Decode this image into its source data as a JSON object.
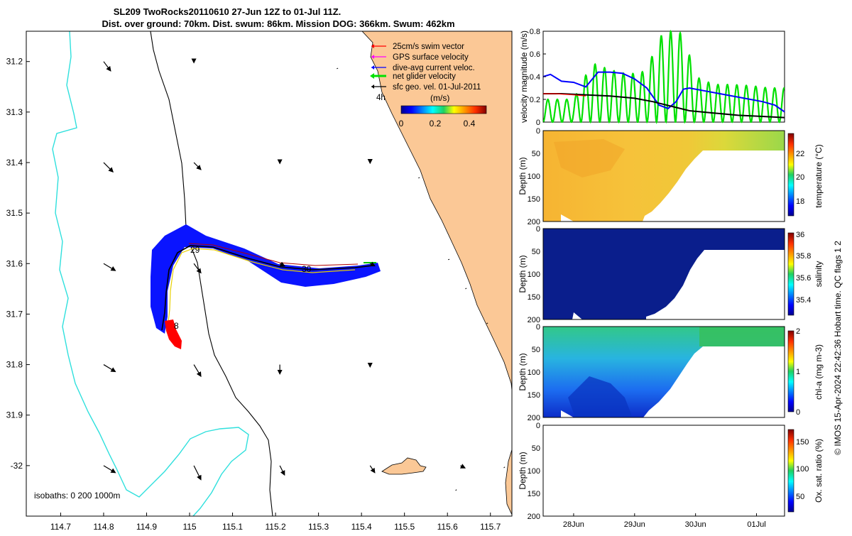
{
  "title": {
    "line1": "SL209 TwoRocks20110610 27-Jun 12Z to 01-Jul 11Z.",
    "line2": "Dist. over ground: 70km. Dist. swum: 86km. Mission DOG: 366km. Swum: 462km"
  },
  "credit": "© IMOS 15-Apr-2024 22:42:36 Hobart time. QC flags 1  2",
  "colors": {
    "land": "#fbc896",
    "isobath": "#2fe0dd",
    "coast": "#000000",
    "glider_band": "#0a14ff",
    "swim_vector": "#ff0000",
    "gps_velocity": "#ff00ff",
    "current_velocity": "#0000ff",
    "net_velocity": "#00e000",
    "geo_velocity": "#000000"
  },
  "chart_data": [
    {
      "type": "map",
      "name": "track-map",
      "xlim": [
        114.62,
        115.75
      ],
      "ylim": [
        -32.1,
        -31.14
      ],
      "xticks": [
        114.7,
        114.8,
        114.9,
        115,
        115.1,
        115.2,
        115.3,
        115.4,
        115.5,
        115.6,
        115.7
      ],
      "xtick_labels": [
        "114.7",
        "114.8",
        "114.9",
        "115",
        "115.1",
        "115.2",
        "115.3",
        "115.4",
        "115.5",
        "115.6",
        "115.7"
      ],
      "yticks": [
        -31.2,
        -31.3,
        -31.4,
        -31.5,
        -31.6,
        -31.7,
        -31.8,
        -31.9,
        -32.0
      ],
      "ytick_labels": [
        "31.2",
        "31.3",
        "31.4",
        "31.5",
        "31.6",
        "31.7",
        "31.8",
        "31.9",
        "-32"
      ],
      "legend": [
        {
          "label": "25cm/s swim vector",
          "color": "#ff0000"
        },
        {
          "label": "GPS surface velocity",
          "color": "#ff00ff"
        },
        {
          "label": "dive-avg current veloc.",
          "color": "#0000ff"
        },
        {
          "label": "net glider velocity",
          "color": "#00e000"
        },
        {
          "label": "sfc geo. vel. 01-Jul-2011",
          "color": "#000000"
        }
      ],
      "legend_extra": "4h",
      "colorbar": {
        "label": "(m/s)",
        "ticks": [
          0,
          0.2,
          0.4
        ],
        "tick_labels": [
          "0",
          "0.2",
          "0.4"
        ],
        "range": [
          0,
          0.5
        ]
      },
      "day_labels": [
        "29",
        "30",
        "8"
      ],
      "isobath_note": "isobaths: 0   200  1000m",
      "geo_vectors": [
        {
          "lon": 114.8,
          "lat": -31.2,
          "u": 0.03,
          "v": -0.04
        },
        {
          "lon": 115.01,
          "lat": -31.2,
          "u": 0.0,
          "v": -0.005
        },
        {
          "lon": 114.8,
          "lat": -31.4,
          "u": 0.04,
          "v": -0.04
        },
        {
          "lon": 115.01,
          "lat": -31.4,
          "u": 0.03,
          "v": -0.03
        },
        {
          "lon": 115.21,
          "lat": -31.4,
          "u": 0.0,
          "v": -0.004
        },
        {
          "lon": 115.42,
          "lat": -31.4,
          "u": 0.0,
          "v": -0.003
        },
        {
          "lon": 114.8,
          "lat": -31.6,
          "u": 0.05,
          "v": -0.03
        },
        {
          "lon": 115.01,
          "lat": -31.6,
          "u": 0.03,
          "v": -0.04
        },
        {
          "lon": 115.21,
          "lat": -31.6,
          "u": 0.02,
          "v": -0.01
        },
        {
          "lon": 115.42,
          "lat": -31.6,
          "u": 0.02,
          "v": -0.01
        },
        {
          "lon": 114.8,
          "lat": -31.8,
          "u": 0.05,
          "v": -0.03
        },
        {
          "lon": 115.01,
          "lat": -31.8,
          "u": 0.03,
          "v": -0.05
        },
        {
          "lon": 115.21,
          "lat": -31.8,
          "u": 0.0,
          "v": -0.04
        },
        {
          "lon": 115.42,
          "lat": -31.8,
          "u": 0.0,
          "v": -0.01
        },
        {
          "lon": 114.8,
          "lat": -32.0,
          "u": 0.05,
          "v": -0.03
        },
        {
          "lon": 115.01,
          "lat": -32.0,
          "u": 0.03,
          "v": -0.06
        },
        {
          "lon": 115.21,
          "lat": -32.0,
          "u": 0.02,
          "v": -0.04
        },
        {
          "lon": 115.42,
          "lat": -32.0,
          "u": 0.02,
          "v": -0.03
        },
        {
          "lon": 115.63,
          "lat": -32.0,
          "u": 0.02,
          "v": -0.01
        }
      ]
    },
    {
      "type": "line",
      "name": "velocity-magnitude",
      "ylabel": "velocity magnitude (m/s)",
      "ylim": [
        0,
        0.8
      ],
      "yticks": [
        0,
        0.2,
        0.4,
        0.6,
        0.8
      ],
      "ytick_labels": [
        "0",
        "0.2",
        "0.4",
        "0.6",
        "0.8"
      ],
      "xlim": [
        27.5,
        31.46
      ],
      "series": [
        {
          "name": "net glider velocity",
          "color": "#00e000",
          "x": [
            27.5,
            28.0,
            28.3,
            28.6,
            28.9,
            29.2,
            29.4,
            29.6,
            29.8,
            30.0,
            30.3,
            30.6,
            30.9,
            31.2,
            31.46
          ],
          "y": [
            0.2,
            0.2,
            0.52,
            0.46,
            0.42,
            0.45,
            0.75,
            0.8,
            0.78,
            0.4,
            0.33,
            0.33,
            0.32,
            0.3,
            0.3
          ]
        },
        {
          "name": "dive-avg current veloc.",
          "color": "#0000ff",
          "x": [
            27.5,
            27.62,
            27.8,
            28.0,
            28.2,
            28.4,
            28.6,
            28.8,
            29.0,
            29.2,
            29.4,
            29.55,
            29.68,
            29.8,
            29.9,
            30.2,
            30.5,
            30.8,
            31.1,
            31.3,
            31.46
          ],
          "y": [
            0.4,
            0.42,
            0.36,
            0.35,
            0.31,
            0.44,
            0.44,
            0.43,
            0.38,
            0.3,
            0.15,
            0.12,
            0.18,
            0.29,
            0.3,
            0.27,
            0.24,
            0.21,
            0.18,
            0.15,
            0.09
          ]
        },
        {
          "name": "sfc geo. vel.",
          "color": "#000000",
          "x": [
            27.5,
            27.8,
            28.2,
            28.6,
            29.0,
            29.3,
            29.6,
            29.9,
            30.3,
            30.7,
            31.1,
            31.46
          ],
          "y": [
            0.25,
            0.25,
            0.24,
            0.23,
            0.21,
            0.18,
            0.14,
            0.1,
            0.08,
            0.06,
            0.05,
            0.04
          ]
        },
        {
          "name": "swim",
          "color": "#ff0000",
          "x": [
            27.5,
            27.7,
            28.0,
            28.2
          ],
          "y": [
            0.25,
            0.25,
            0.24,
            0.23
          ]
        }
      ]
    },
    {
      "type": "heatmap",
      "name": "temperature",
      "ylabel": "Depth (m)",
      "yticks": [
        0,
        50,
        100,
        150,
        200
      ],
      "ytick_labels": [
        "0",
        "50",
        "100",
        "150",
        "200"
      ],
      "colorbar_label": "temperature (°C)",
      "colorbar_ticks": [
        "18",
        "20",
        "22"
      ],
      "colorbar_range": [
        16.5,
        23.5
      ]
    },
    {
      "type": "heatmap",
      "name": "salinity",
      "ylabel": "Depth (m)",
      "yticks": [
        0,
        50,
        100,
        150,
        200
      ],
      "ytick_labels": [
        "0",
        "50",
        "100",
        "150",
        "200"
      ],
      "colorbar_label": "salinity",
      "colorbar_ticks": [
        "35.4",
        "35.6",
        "35.8",
        "36"
      ],
      "colorbar_range": [
        35.3,
        36.05
      ]
    },
    {
      "type": "heatmap",
      "name": "chlorophyll",
      "ylabel": "Depth (m)",
      "yticks": [
        0,
        50,
        100,
        150,
        200
      ],
      "ytick_labels": [
        "0",
        "50",
        "100",
        "150",
        "200"
      ],
      "colorbar_label": "chl-a (mg m-3)",
      "colorbar_ticks": [
        "0",
        "1",
        "2"
      ],
      "colorbar_range": [
        0,
        2
      ]
    },
    {
      "type": "heatmap",
      "name": "oxygen",
      "ylabel": "Depth (m)",
      "yticks": [
        0,
        50,
        100,
        150,
        200
      ],
      "ytick_labels": [
        "0",
        "50",
        "100",
        "150",
        "200"
      ],
      "colorbar_label": "Ox. sat. ratio (%)",
      "colorbar_ticks": [
        "50",
        "100",
        "150"
      ],
      "colorbar_range": [
        25,
        175
      ],
      "xticks": [
        28,
        29,
        30,
        31
      ],
      "xtick_labels": [
        "28Jun",
        "29Jun",
        "30Jun",
        "01Jul"
      ]
    }
  ]
}
